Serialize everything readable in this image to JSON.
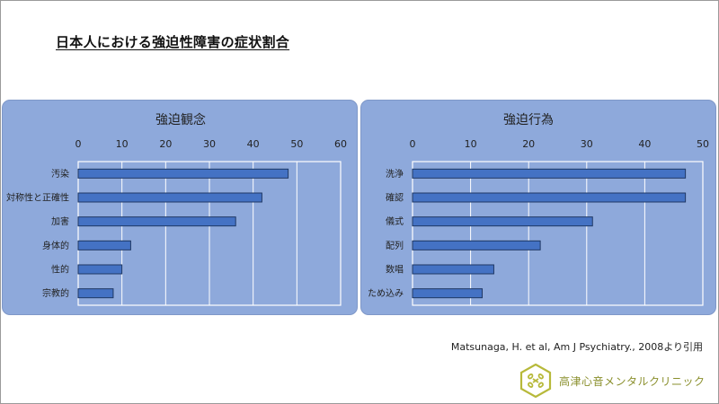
{
  "slide": {
    "title": "日本人における強迫性障害の症状割合",
    "citation": "Matsunaga, H. et al, Am J Psychiatry., 2008より引用",
    "logo_text": "高津心音メンタルクリニック"
  },
  "colors": {
    "panel_bg": "#8ea9db",
    "plot_bg": "#8ea9db",
    "bar_fill": "#4472c4",
    "bar_stroke": "#1f3864",
    "gridline": "#ffffff",
    "logo_color": "#8a8f2c"
  },
  "chart_data": [
    {
      "type": "bar",
      "orientation": "horizontal",
      "title": "強迫観念",
      "categories": [
        "汚染",
        "対称性と正確性",
        "加害",
        "身体的",
        "性的",
        "宗教的"
      ],
      "values": [
        48,
        42,
        36,
        12,
        10,
        8
      ],
      "xlim": [
        0,
        60
      ],
      "xticks": [
        0,
        10,
        20,
        30,
        40,
        50,
        60
      ],
      "grid": true,
      "x_axis_position": "top",
      "xlabel": "",
      "ylabel": ""
    },
    {
      "type": "bar",
      "orientation": "horizontal",
      "title": "強迫行為",
      "categories": [
        "洗浄",
        "確認",
        "儀式",
        "配列",
        "数唱",
        "ため込み"
      ],
      "values": [
        47,
        47,
        31,
        22,
        14,
        12
      ],
      "xlim": [
        0,
        50
      ],
      "xticks": [
        0,
        10,
        20,
        30,
        40,
        50
      ],
      "grid": true,
      "x_axis_position": "top",
      "xlabel": "",
      "ylabel": ""
    }
  ]
}
